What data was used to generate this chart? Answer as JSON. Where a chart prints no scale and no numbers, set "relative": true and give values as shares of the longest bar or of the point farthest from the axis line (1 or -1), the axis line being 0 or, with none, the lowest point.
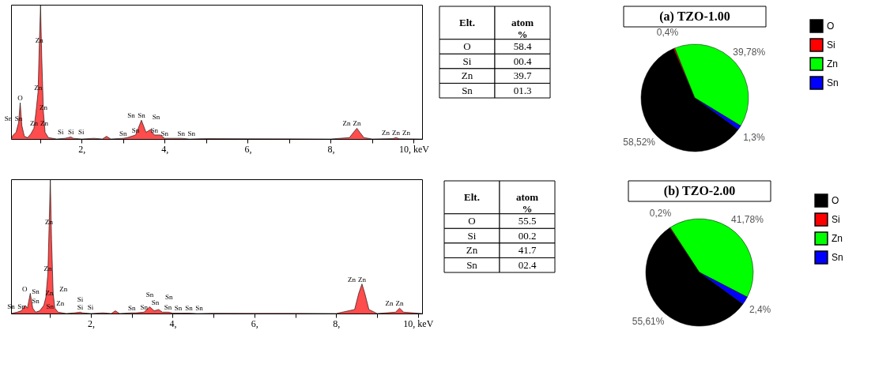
{
  "chart_data": [
    {
      "type": "area",
      "relative": true,
      "grid": false,
      "xlim": [
        0.3,
        10.2
      ],
      "xticks": [
        {
          "value": 1,
          "label": null
        },
        {
          "value": 2,
          "label": "2,"
        },
        {
          "value": 3,
          "label": null
        },
        {
          "value": 4,
          "label": "4,"
        },
        {
          "value": 5,
          "label": null
        },
        {
          "value": 6,
          "label": "6,"
        },
        {
          "value": 7,
          "label": null
        },
        {
          "value": 8,
          "label": "8,"
        },
        {
          "value": 9,
          "label": null
        },
        {
          "value": 10,
          "label": "10, keV"
        }
      ],
      "series": [
        {
          "color": "#ff0000",
          "x": [
            0.3,
            0.35,
            0.42,
            0.48,
            0.52,
            0.56,
            0.62,
            0.7,
            0.78,
            0.85,
            0.9,
            0.95,
            0.98,
            1.01,
            1.04,
            1.08,
            1.12,
            1.2,
            1.4,
            1.6,
            1.74,
            1.8,
            2.0,
            2.3,
            2.5,
            2.6,
            2.7,
            3.0,
            3.1,
            3.3,
            3.44,
            3.55,
            3.66,
            3.75,
            3.9,
            4.0,
            4.2,
            4.4,
            4.6,
            5.0,
            6.0,
            7.0,
            8.0,
            8.45,
            8.55,
            8.63,
            8.7,
            8.8,
            9.0,
            9.5,
            9.57,
            9.65,
            10.2
          ],
          "values": [
            0.0,
            0.03,
            0.05,
            0.12,
            0.27,
            0.1,
            0.02,
            0.01,
            0.04,
            0.08,
            0.2,
            0.35,
            0.7,
            1.0,
            0.6,
            0.2,
            0.05,
            0.01,
            0.0,
            0.005,
            0.015,
            0.005,
            0.0,
            0.005,
            0.0,
            0.02,
            0.0,
            0.005,
            0.01,
            0.03,
            0.14,
            0.05,
            0.07,
            0.03,
            0.03,
            0.005,
            0.005,
            0.005,
            0.0,
            0.003,
            0.002,
            0.001,
            0.0,
            0.01,
            0.05,
            0.08,
            0.05,
            0.01,
            0.0,
            0.003,
            0.01,
            0.002,
            0.0
          ]
        }
      ],
      "annotations": [
        {
          "text": "O",
          "x": 0.52,
          "y": 0.27
        },
        {
          "text": "Sn",
          "x": 0.48,
          "y": 0.12
        },
        {
          "text": "Sn",
          "x": 0.48,
          "y": 0.12
        },
        {
          "text": "Zn",
          "x": 0.85,
          "y": 0.08
        },
        {
          "text": "Zn",
          "x": 0.85,
          "y": 0.08
        },
        {
          "text": "Zn",
          "x": 1.08,
          "y": 0.2
        },
        {
          "text": "Zn",
          "x": 0.95,
          "y": 0.35
        },
        {
          "text": "Zn",
          "x": 0.98,
          "y": 0.7
        },
        {
          "text": "Si",
          "x": 1.74,
          "y": 0.015
        },
        {
          "text": "Si",
          "x": 1.74,
          "y": 0.015
        },
        {
          "text": "Si",
          "x": 1.74,
          "y": 0.015
        },
        {
          "text": "Sn",
          "x": 3.0,
          "y": 0.005
        },
        {
          "text": "Sn",
          "x": 3.3,
          "y": 0.03
        },
        {
          "text": "Sn",
          "x": 3.44,
          "y": 0.14
        },
        {
          "text": "Sn",
          "x": 3.44,
          "y": 0.14
        },
        {
          "text": "Sn",
          "x": 3.75,
          "y": 0.03
        },
        {
          "text": "Sn",
          "x": 3.66,
          "y": 0.07
        },
        {
          "text": "Sn",
          "x": 4.0,
          "y": 0.005
        },
        {
          "text": "Sn",
          "x": 4.4,
          "y": 0.005
        },
        {
          "text": "Sn",
          "x": 4.4,
          "y": 0.005
        },
        {
          "text": "Zn",
          "x": 8.63,
          "y": 0.08
        },
        {
          "text": "Zn",
          "x": 8.63,
          "y": 0.08
        },
        {
          "text": "Zn",
          "x": 9.57,
          "y": 0.01
        },
        {
          "text": "Zn",
          "x": 9.57,
          "y": 0.01
        },
        {
          "text": "Zn",
          "x": 9.57,
          "y": 0.01
        }
      ]
    },
    {
      "type": "other",
      "categories": [
        "O",
        "Si",
        "Zn",
        "Sn"
      ],
      "values": [
        58.4,
        0.4,
        39.7,
        1.3
      ],
      "value_labels": [
        "58.4",
        "00.4",
        "39.7",
        "01.3"
      ],
      "annotations": [
        "Elt.",
        "atom %"
      ]
    },
    {
      "type": "pie",
      "title": "(a)  TZO-1.00",
      "categories": [
        "O",
        "Si",
        "Zn",
        "Sn"
      ],
      "values": [
        58.52,
        0.4,
        39.78,
        1.3
      ],
      "colors": [
        "#000000",
        "#ff0000",
        "#00ff00",
        "#0000ff"
      ],
      "value_labels": [
        "58,52%",
        "0,4%",
        "39,78%",
        "1,3%"
      ],
      "legend": "top right"
    },
    {
      "type": "area",
      "relative": true,
      "grid": false,
      "xlim": [
        0.05,
        10.1
      ],
      "xticks": [
        {
          "value": 1,
          "label": null
        },
        {
          "value": 2,
          "label": "2,"
        },
        {
          "value": 3,
          "label": null
        },
        {
          "value": 4,
          "label": "4,"
        },
        {
          "value": 5,
          "label": null
        },
        {
          "value": 6,
          "label": "6,"
        },
        {
          "value": 7,
          "label": null
        },
        {
          "value": 8,
          "label": "8,"
        },
        {
          "value": 9,
          "label": null
        },
        {
          "value": 10,
          "label": "10, keV"
        }
      ],
      "series": [
        {
          "color": "#ff0000",
          "x": [
            0.05,
            0.2,
            0.3,
            0.4,
            0.45,
            0.52,
            0.58,
            0.65,
            0.75,
            0.85,
            0.9,
            0.95,
            0.98,
            1.01,
            1.04,
            1.08,
            1.12,
            1.2,
            1.4,
            1.6,
            1.74,
            1.8,
            2.0,
            2.3,
            2.5,
            2.6,
            2.7,
            3.0,
            3.1,
            3.3,
            3.44,
            3.55,
            3.66,
            3.75,
            3.9,
            4.0,
            4.2,
            4.4,
            4.6,
            5.0,
            6.0,
            7.0,
            8.0,
            8.45,
            8.55,
            8.63,
            8.7,
            8.8,
            9.0,
            9.45,
            9.55,
            9.65,
            10.1
          ],
          "values": [
            0.0,
            0.01,
            0.02,
            0.06,
            0.04,
            0.15,
            0.04,
            0.01,
            0.02,
            0.06,
            0.12,
            0.3,
            0.65,
            1.0,
            0.55,
            0.15,
            0.04,
            0.01,
            0.0,
            0.005,
            0.01,
            0.005,
            0.0,
            0.005,
            0.0,
            0.02,
            0.0,
            0.005,
            0.005,
            0.01,
            0.05,
            0.02,
            0.03,
            0.01,
            0.01,
            0.003,
            0.003,
            0.003,
            0.0,
            0.002,
            0.001,
            0.001,
            0.0,
            0.03,
            0.15,
            0.22,
            0.15,
            0.03,
            0.0,
            0.01,
            0.04,
            0.01,
            0.0
          ]
        }
      ],
      "annotations": [
        {
          "text": "Sn",
          "x": 0.3,
          "y": 0.02
        },
        {
          "text": "Sn",
          "x": 0.3,
          "y": 0.02
        },
        {
          "text": "Sn",
          "x": 0.4,
          "y": 0.06
        },
        {
          "text": "Sn",
          "x": 0.75,
          "y": 0.02
        },
        {
          "text": "Sn",
          "x": 0.65,
          "y": 0.01
        },
        {
          "text": "O",
          "x": 0.52,
          "y": 0.15
        },
        {
          "text": "Zn",
          "x": 0.85,
          "y": 0.06
        },
        {
          "text": "Zn",
          "x": 1.12,
          "y": 0.04
        },
        {
          "text": "Zn",
          "x": 1.08,
          "y": 0.15
        },
        {
          "text": "Zn",
          "x": 0.95,
          "y": 0.3
        },
        {
          "text": "Zn",
          "x": 0.98,
          "y": 0.65
        },
        {
          "text": "Si",
          "x": 1.74,
          "y": 0.01
        },
        {
          "text": "Si",
          "x": 1.74,
          "y": 0.01
        },
        {
          "text": "Si",
          "x": 1.74,
          "y": 0.01
        },
        {
          "text": "Sn",
          "x": 3.0,
          "y": 0.005
        },
        {
          "text": "Sn",
          "x": 3.3,
          "y": 0.01
        },
        {
          "text": "Sn",
          "x": 3.44,
          "y": 0.05
        },
        {
          "text": "Sn",
          "x": 3.44,
          "y": 0.05
        },
        {
          "text": "Sn",
          "x": 3.75,
          "y": 0.01
        },
        {
          "text": "Sn",
          "x": 3.66,
          "y": 0.03
        },
        {
          "text": "Sn",
          "x": 4.0,
          "y": 0.003
        },
        {
          "text": "Sn",
          "x": 4.4,
          "y": 0.003
        },
        {
          "text": "Sn",
          "x": 4.4,
          "y": 0.003
        },
        {
          "text": "Zn",
          "x": 8.63,
          "y": 0.22
        },
        {
          "text": "Zn",
          "x": 8.63,
          "y": 0.22
        },
        {
          "text": "Zn",
          "x": 9.55,
          "y": 0.04
        },
        {
          "text": "Zn",
          "x": 9.55,
          "y": 0.04
        }
      ]
    },
    {
      "type": "other",
      "categories": [
        "O",
        "Si",
        "Zn",
        "Sn"
      ],
      "values": [
        55.5,
        0.2,
        41.7,
        2.4
      ],
      "value_labels": [
        "55.5",
        "00.2",
        "41.7",
        "02.4"
      ],
      "annotations": [
        "Elt.",
        "atom %"
      ]
    },
    {
      "type": "pie",
      "title": "(b) TZO-2.00",
      "categories": [
        "O",
        "Si",
        "Zn",
        "Sn"
      ],
      "values": [
        55.61,
        0.2,
        41.78,
        2.4
      ],
      "colors": [
        "#000000",
        "#ff0000",
        "#00ff00",
        "#0000ff"
      ],
      "value_labels": [
        "55,61%",
        "0,2%",
        "41,78%",
        "2,4%"
      ],
      "legend": "top right"
    }
  ]
}
